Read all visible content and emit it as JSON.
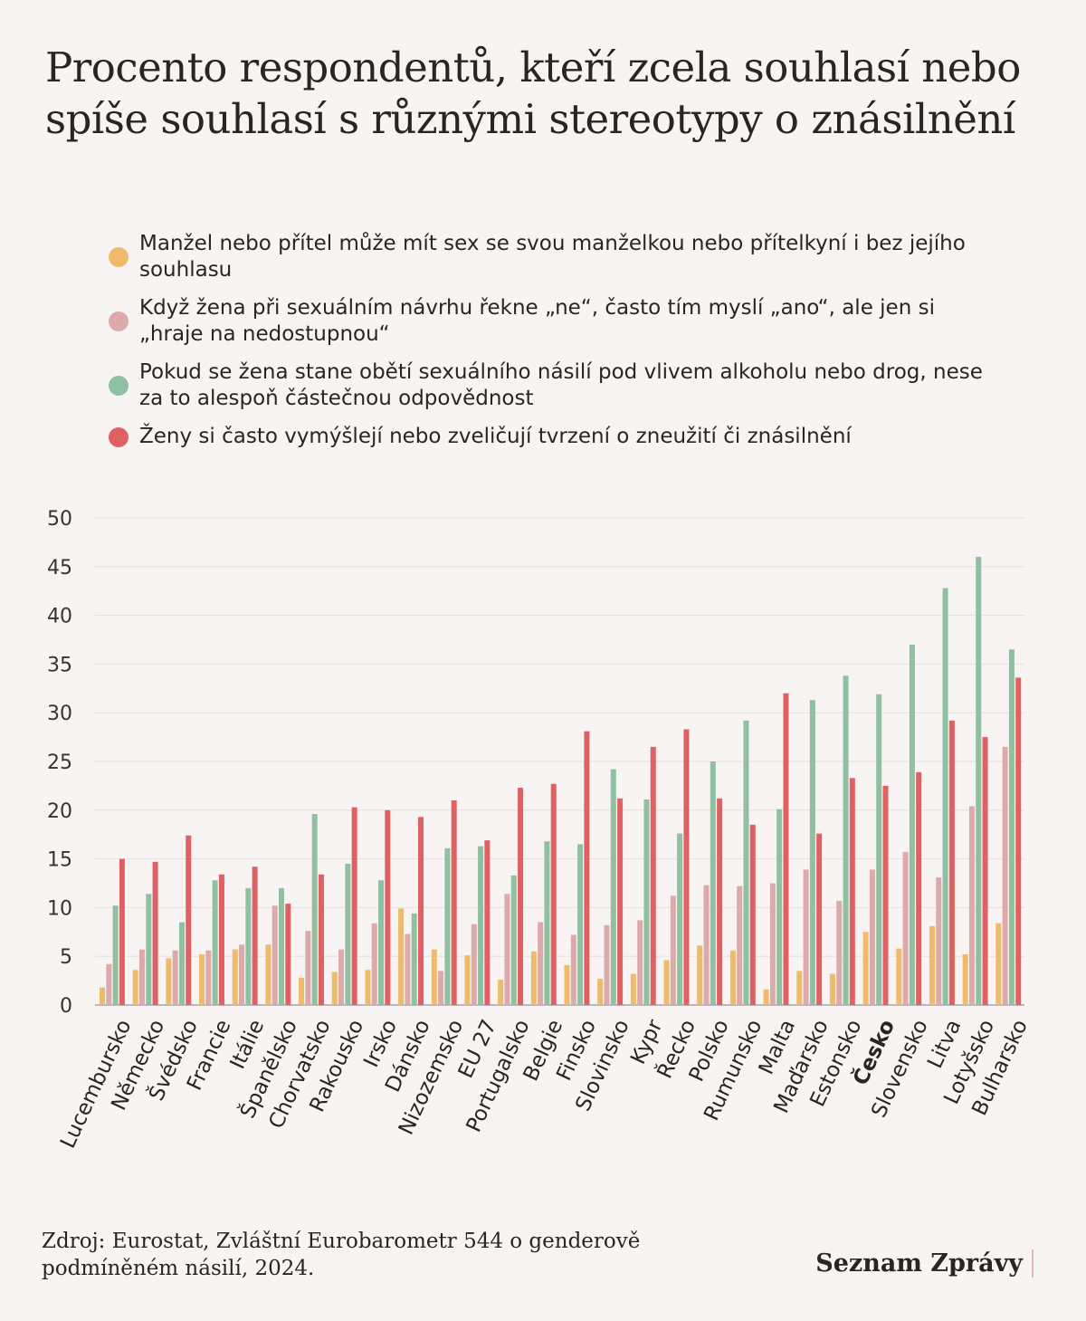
{
  "title": "Procento respondentů, kteří zcela souhlasí nebo spíše souhlasí s různými stereotypy o znásilnění",
  "source": "Zdroj: Eurostat, Zvláštní Eurobarometr 544 o genderově podmíněném násilí, 2024.",
  "logo": "Seznam Zprávy",
  "chart_data": {
    "type": "bar",
    "title": "Procento respondentů, kteří zcela souhlasí nebo spíše souhlasí s různými stereotypy o znásilnění",
    "xlabel": "",
    "ylabel": "",
    "ylim": [
      0,
      50
    ],
    "yticks": [
      0,
      5,
      10,
      15,
      20,
      25,
      30,
      35,
      40,
      45,
      50
    ],
    "grid": true,
    "legend_position": "top",
    "highlight_category": "Česko",
    "categories": [
      "Lucembursko",
      "Německo",
      "Švédsko",
      "Francie",
      "Itálie",
      "Španělsko",
      "Chorvatsko",
      "Rakousko",
      "Irsko",
      "Dánsko",
      "Nizozemsko",
      "EU 27",
      "Portugalsko",
      "Belgie",
      "Finsko",
      "Slovinsko",
      "Kypr",
      "Řecko",
      "Polsko",
      "Rumunsko",
      "Malta",
      "Maďarsko",
      "Estonsko",
      "Česko",
      "Slovensko",
      "Litva",
      "Lotyšsko",
      "Bulharsko"
    ],
    "series": [
      {
        "name": "Manžel nebo přítel může mít sex se svou manželkou nebo přítelkyní i bez jejího souhlasu",
        "color": "#eebb6a",
        "values": [
          1.8,
          3.6,
          4.8,
          5.2,
          5.7,
          6.2,
          2.8,
          3.4,
          3.6,
          9.9,
          5.7,
          5.1,
          2.6,
          5.5,
          4.1,
          2.7,
          3.2,
          4.6,
          6.1,
          5.6,
          1.6,
          3.5,
          3.2,
          7.5,
          5.8,
          8.1,
          5.2,
          8.4
        ]
      },
      {
        "name": "Když žena při sexuálním návrhu řekne „ne“, často tím myslí „ano“, ale jen si „hraje na nedostupnou“",
        "color": "#dcaaab",
        "values": [
          4.2,
          5.7,
          5.6,
          5.6,
          6.2,
          10.2,
          7.6,
          5.7,
          8.4,
          7.3,
          3.5,
          8.3,
          11.4,
          8.5,
          7.2,
          8.2,
          8.7,
          11.2,
          12.3,
          12.2,
          12.5,
          13.9,
          10.7,
          13.9,
          15.7,
          13.1,
          20.4,
          26.5
        ]
      },
      {
        "name": "Pokud se žena stane obětí sexuálního násilí pod vlivem alkoholu nebo drog, nese za to alespoň částečnou odpovědnost",
        "color": "#8fc0a0",
        "values": [
          10.2,
          11.4,
          8.5,
          12.8,
          12.0,
          12.0,
          19.6,
          14.5,
          12.8,
          9.4,
          16.1,
          16.3,
          13.3,
          16.8,
          16.5,
          24.2,
          21.1,
          17.6,
          25.0,
          29.2,
          20.1,
          31.3,
          33.8,
          31.9,
          37.0,
          42.8,
          46.0,
          36.5
        ]
      },
      {
        "name": "Ženy si často vymýšlejí nebo zveličují tvrzení o zneužití či znásilnění",
        "color": "#e06163",
        "values": [
          15.0,
          14.7,
          17.4,
          13.4,
          14.2,
          10.4,
          13.4,
          20.3,
          20.0,
          19.3,
          21.0,
          16.9,
          22.3,
          22.7,
          28.1,
          21.2,
          26.5,
          28.3,
          21.2,
          18.5,
          32.0,
          17.6,
          23.3,
          22.5,
          23.9,
          29.2,
          27.5,
          33.6
        ]
      }
    ]
  }
}
